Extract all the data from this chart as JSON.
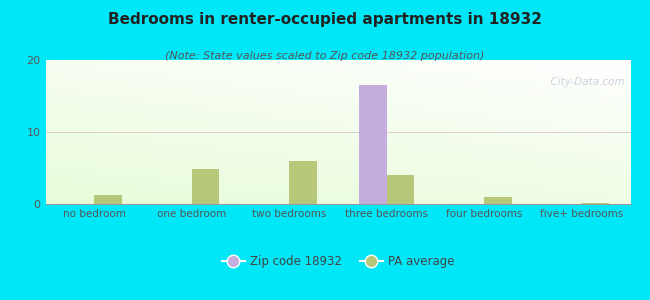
{
  "title": "Bedrooms in renter-occupied apartments in 18932",
  "subtitle": "(Note: State values scaled to Zip code 18932 population)",
  "categories": [
    "no bedroom",
    "one bedroom",
    "two bedrooms",
    "three bedrooms",
    "four bedrooms",
    "five+ bedrooms"
  ],
  "zip_values": [
    0,
    0,
    0,
    16.5,
    0,
    0
  ],
  "pa_values": [
    1.2,
    4.8,
    6.0,
    4.0,
    1.0,
    0.2
  ],
  "zip_color": "#c4aee0",
  "pa_color": "#b8c87a",
  "background_color": "#00e8f8",
  "ylim": [
    0,
    20
  ],
  "yticks": [
    0,
    10,
    20
  ],
  "bar_width": 0.28,
  "watermark": "  City-Data.com",
  "legend_zip_label": "Zip code 18932",
  "legend_pa_label": "PA average",
  "title_fontsize": 11,
  "subtitle_fontsize": 8,
  "axis_label_fontsize": 7.5,
  "tick_fontsize": 8
}
